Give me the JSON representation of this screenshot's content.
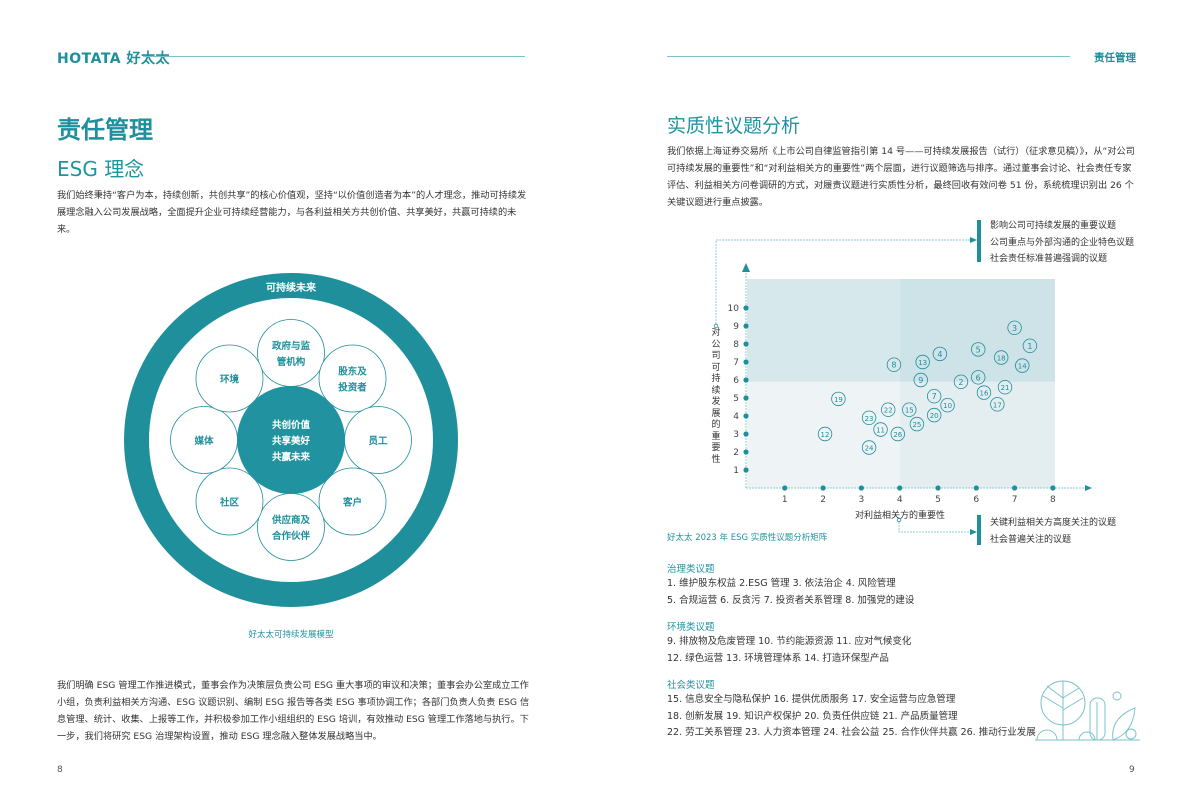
{
  "header": {
    "logo": "HOTATA 好太太",
    "section": "责任管理"
  },
  "left": {
    "title": "责任管理",
    "subtitle": "ESG 理念",
    "intro": "我们始终秉持“客户为本，持续创新，共创共享”的核心价值观，坚持“以价值创造者为本”的人才理念，推动可持续发展理念融入公司发展战略，全面提升企业可持续经营能力，与各利益相关方共创价值、共享美好，共赢可持续的未来。",
    "model": {
      "outer": "可持续未来",
      "center": [
        "共创价值",
        "共享美好",
        "共赢未来"
      ],
      "nodes": [
        "政府与监\n管机构",
        "股东及\n投资者",
        "员工",
        "客户",
        "供应商及\n合作伙伴",
        "社区",
        "媒体",
        "环境"
      ],
      "caption": "好太太可持续发展模型"
    },
    "body": "我们明确 ESG 管理工作推进模式，董事会作为决策层负责公司 ESG 重大事项的审议和决策；董事会办公室成立工作小组，负责利益相关方沟通、ESG 议题识别、编制 ESG 报告等各类 ESG 事项协调工作；各部门负责人负责 ESG 信息管理、统计、收集、上报等工作，并积极参加工作小组组织的 ESG 培训，有效推动 ESG 管理工作落地与执行。下一步，我们将研究 ESG 治理架构设置，推动 ESG 理念融入整体发展战略当中。",
    "page_number": "8"
  },
  "right": {
    "title": "实质性议题分析",
    "intro": "我们依据上海证券交易所《上市公司自律监管指引第 14 号——可持续发展报告（试行）（征求意见稿）》，从“对公司可持续发展的重要性”和“对利益相关方的重要性”两个层面，进行议题筛选与排序。通过董事会讨论、社会责任专家评估、利益相关方问卷调研的方式，对履责议题进行实质性分析，最终回收有效问卷 51 份，系统梳理识别出 26 个关键议题进行重点披露。",
    "legend_top": [
      "影响公司可持续发展的重要议题",
      "公司重点与外部沟通的企业特色议题",
      "社会责任标准普遍强调的议题"
    ],
    "legend_bottom": [
      "关键利益相关方高度关注的议题",
      "社会普遍关注的议题"
    ],
    "caption": "好太太 2023 年 ESG 实质性议题分析矩阵",
    "categories": [
      {
        "label": "治理类议题",
        "lines": [
          "1. 维护股东权益   2.ESG 管理   3. 依法治企   4. 风险管理",
          "5. 合规运营   6. 反贪污   7. 投资者关系管理   8. 加强党的建设"
        ]
      },
      {
        "label": "环境类议题",
        "lines": [
          "9. 排放物及危废管理   10. 节约能源资源   11. 应对气候变化",
          "12. 绿色运营   13. 环境管理体系   14. 打造环保型产品"
        ]
      },
      {
        "label": "社会类议题",
        "lines": [
          "15. 信息安全与隐私保护   16. 提供优质服务   17. 安全运营与应急管理",
          "18. 创新发展   19. 知识产权保护   20. 负责任供应链   21. 产品质量管理",
          "22. 劳工关系管理   23. 人力资本管理   24. 社会公益   25. 合作伙伴共赢   26. 推动行业发展"
        ]
      }
    ],
    "page_number": "9"
  },
  "chart_data": {
    "type": "scatter",
    "title": "好太太 2023 年 ESG 实质性议题分析矩阵",
    "xlabel": "对利益相关方的重要性",
    "ylabel": "对公司可持续发展的重要性",
    "xlim": [
      0,
      8
    ],
    "ylim": [
      0,
      10
    ],
    "xticks": [
      "1",
      "2",
      "3",
      "4",
      "5",
      "6",
      "7",
      "8"
    ],
    "yticks": [
      "1",
      "2",
      "3",
      "4",
      "5",
      "6",
      "7",
      "8",
      "9",
      "10"
    ],
    "highlight_regions": {
      "upper_y_from": 5.9,
      "right_x_from": 4.0
    },
    "colors": {
      "accent": "#1f8f9c",
      "upper_band": "#d6e8eb",
      "lower_band": "#eef4f6",
      "right_upper": "#cde3e8",
      "right_lower": "#e4eef1"
    },
    "points": [
      {
        "id": "1",
        "x": 7.4,
        "y": 7.9
      },
      {
        "id": "2",
        "x": 5.6,
        "y": 5.9
      },
      {
        "id": "3",
        "x": 7.0,
        "y": 8.9
      },
      {
        "id": "4",
        "x": 5.05,
        "y": 7.45
      },
      {
        "id": "5",
        "x": 6.05,
        "y": 7.7
      },
      {
        "id": "6",
        "x": 6.05,
        "y": 6.15
      },
      {
        "id": "7",
        "x": 4.9,
        "y": 5.1
      },
      {
        "id": "8",
        "x": 3.85,
        "y": 6.85
      },
      {
        "id": "9",
        "x": 4.55,
        "y": 6.0
      },
      {
        "id": "10",
        "x": 5.25,
        "y": 4.6
      },
      {
        "id": "11",
        "x": 3.5,
        "y": 3.25
      },
      {
        "id": "12",
        "x": 2.05,
        "y": 3.0
      },
      {
        "id": "13",
        "x": 4.6,
        "y": 7.0
      },
      {
        "id": "14",
        "x": 7.2,
        "y": 6.8
      },
      {
        "id": "15",
        "x": 4.25,
        "y": 4.35
      },
      {
        "id": "16",
        "x": 6.2,
        "y": 5.3
      },
      {
        "id": "17",
        "x": 6.55,
        "y": 4.65
      },
      {
        "id": "18",
        "x": 6.65,
        "y": 7.25
      },
      {
        "id": "19",
        "x": 2.4,
        "y": 4.95
      },
      {
        "id": "20",
        "x": 4.9,
        "y": 4.05
      },
      {
        "id": "21",
        "x": 6.75,
        "y": 5.6
      },
      {
        "id": "22",
        "x": 3.7,
        "y": 4.35
      },
      {
        "id": "23",
        "x": 3.2,
        "y": 3.9
      },
      {
        "id": "24",
        "x": 3.2,
        "y": 2.25
      },
      {
        "id": "25",
        "x": 4.45,
        "y": 3.55
      },
      {
        "id": "26",
        "x": 3.95,
        "y": 3.0
      }
    ]
  }
}
